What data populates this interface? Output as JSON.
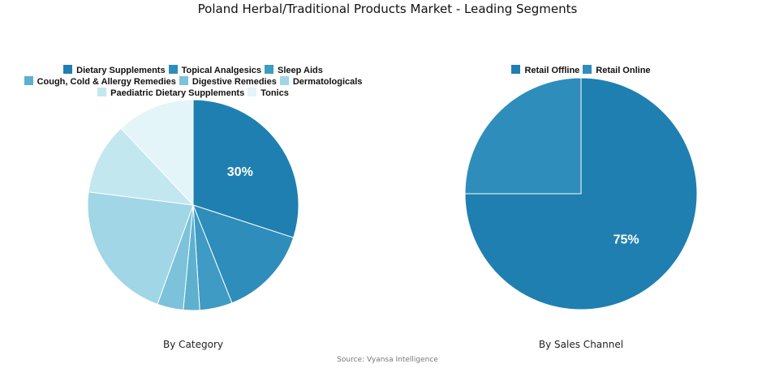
{
  "title": "Poland Herbal/Traditional Products Market - Leading Segments",
  "source": "Source: Vyansa Intelligence",
  "chart_data": [
    {
      "type": "pie",
      "caption": "By Category",
      "categories": [
        "Dietary Supplements",
        "Topical Analgesics",
        "Sleep Aids",
        "Cough, Cold & Allergy Remedies",
        "Digestive Remedies",
        "Dermatologicals",
        "Paediatric Dietary Supplements",
        "Tonics"
      ],
      "values": [
        30,
        14,
        5,
        2.5,
        4,
        21.5,
        11,
        12
      ],
      "colors": [
        "#1f7fb0",
        "#2e8dbb",
        "#3f9ac4",
        "#5eb0cf",
        "#7cc2da",
        "#a0d6e5",
        "#c3e7ef",
        "#e3f5f9"
      ],
      "data_labels": [
        "30%",
        "",
        "",
        "",
        "",
        "",
        "",
        ""
      ],
      "legend_rows": [
        [
          0,
          1,
          2
        ],
        [
          3,
          4,
          5
        ],
        [
          6,
          7
        ]
      ],
      "legend_position": "top"
    },
    {
      "type": "pie",
      "caption": "By Sales Channel",
      "categories": [
        "Retail Offline",
        "Retail Online"
      ],
      "values": [
        75,
        25
      ],
      "colors": [
        "#1f7fb0",
        "#2e8dbb"
      ],
      "data_labels": [
        "75%",
        ""
      ],
      "legend_rows": [
        [
          0,
          1
        ]
      ],
      "legend_position": "top"
    }
  ]
}
